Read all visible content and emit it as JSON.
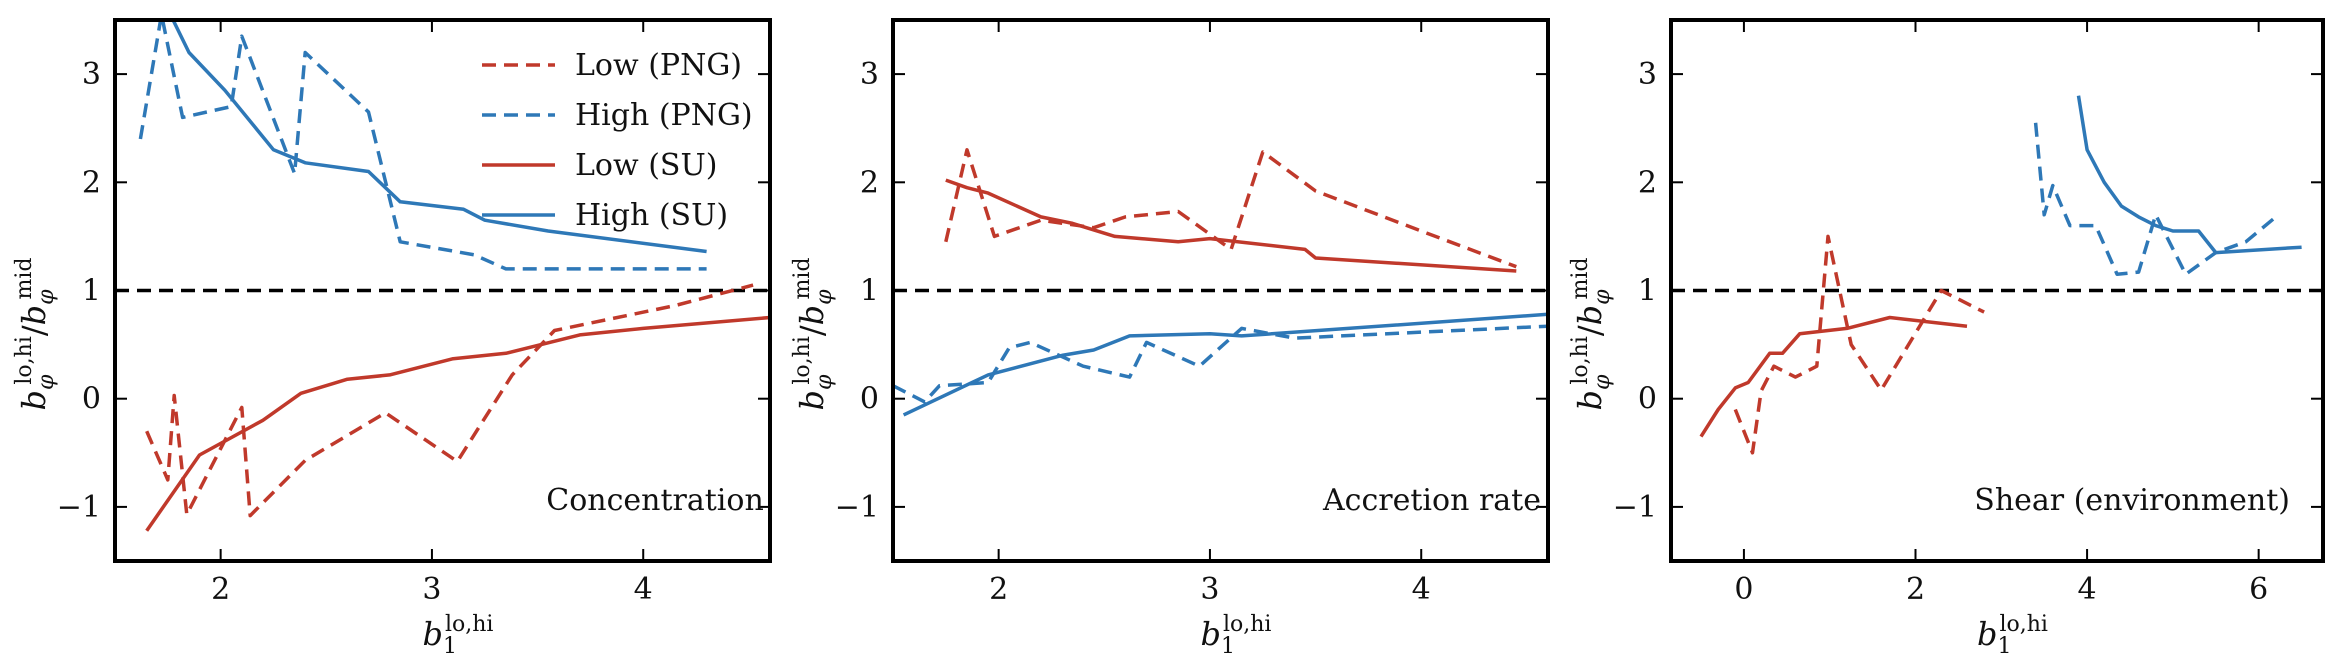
{
  "figure": {
    "legend": [
      {
        "label": "Low (PNG)",
        "color": "#c0392b",
        "dash": true
      },
      {
        "label": "High (PNG)",
        "color": "#2e78b7",
        "dash": true
      },
      {
        "label": "Low (SU)",
        "color": "#c0392b",
        "dash": false
      },
      {
        "label": "High (SU)",
        "color": "#2e78b7",
        "dash": false
      }
    ],
    "colors": {
      "low": "#c0392b",
      "high": "#2e78b7",
      "reference": "#000000"
    }
  },
  "chart_data": [
    {
      "type": "line",
      "annotation": "Concentration",
      "xlabel": "b_1^{lo,hi}",
      "ylabel": "b_φ^{lo,hi} / b_φ^{mid}",
      "xlim": [
        1.5,
        4.6
      ],
      "ylim": [
        -1.5,
        3.5
      ],
      "xticks": [
        2,
        3,
        4
      ],
      "yticks": [
        -1,
        0,
        1,
        2,
        3
      ],
      "reference_line": 1,
      "legend_position": "top-right",
      "series": [
        {
          "name": "Low (PNG)",
          "color": "#c0392b",
          "dashed": true,
          "x": [
            1.65,
            1.75,
            1.78,
            1.84,
            2.1,
            2.14,
            2.4,
            2.78,
            3.12,
            3.38,
            3.58,
            4.15,
            4.52
          ],
          "y": [
            -0.3,
            -0.75,
            0.03,
            -1.07,
            -0.08,
            -1.08,
            -0.57,
            -0.13,
            -0.58,
            0.22,
            0.63,
            0.86,
            1.05
          ]
        },
        {
          "name": "High (PNG)",
          "color": "#2e78b7",
          "dashed": true,
          "x": [
            1.62,
            1.72,
            1.82,
            2.05,
            2.1,
            2.35,
            2.4,
            2.7,
            2.85,
            3.2,
            3.35,
            4.3
          ],
          "y": [
            2.4,
            3.55,
            2.6,
            2.7,
            3.35,
            2.08,
            3.2,
            2.65,
            1.45,
            1.33,
            1.2,
            1.2
          ]
        },
        {
          "name": "Low (SU)",
          "color": "#c0392b",
          "dashed": false,
          "x": [
            1.65,
            1.9,
            2.2,
            2.38,
            2.6,
            2.8,
            3.1,
            3.35,
            3.7,
            4.0,
            4.6
          ],
          "y": [
            -1.22,
            -0.52,
            -0.2,
            0.05,
            0.18,
            0.22,
            0.37,
            0.42,
            0.59,
            0.65,
            0.75
          ]
        },
        {
          "name": "High (SU)",
          "color": "#2e78b7",
          "dashed": false,
          "x": [
            1.75,
            1.85,
            2.02,
            2.25,
            2.4,
            2.7,
            2.85,
            3.15,
            3.25,
            3.55,
            4.3
          ],
          "y": [
            3.6,
            3.2,
            2.85,
            2.3,
            2.18,
            2.1,
            1.82,
            1.75,
            1.65,
            1.55,
            1.36
          ]
        }
      ]
    },
    {
      "type": "line",
      "annotation": "Accretion rate",
      "xlabel": "b_1^{lo,hi}",
      "ylabel": "b_φ^{lo,hi} / b_φ^{mid}",
      "xlim": [
        1.5,
        4.6
      ],
      "ylim": [
        -1.5,
        3.5
      ],
      "xticks": [
        2,
        3,
        4
      ],
      "yticks": [
        -1,
        0,
        1,
        2,
        3
      ],
      "reference_line": 1,
      "series": [
        {
          "name": "Low (PNG)",
          "color": "#c0392b",
          "dashed": true,
          "x": [
            1.75,
            1.85,
            1.98,
            2.2,
            2.45,
            2.6,
            2.85,
            3.1,
            3.25,
            3.5,
            4.0,
            4.45
          ],
          "y": [
            1.45,
            2.3,
            1.5,
            1.65,
            1.58,
            1.68,
            1.73,
            1.38,
            2.28,
            1.92,
            1.55,
            1.22
          ]
        },
        {
          "name": "High (PNG)",
          "color": "#2e78b7",
          "dashed": true,
          "x": [
            1.5,
            1.65,
            1.72,
            1.95,
            2.05,
            2.15,
            2.4,
            2.62,
            2.7,
            2.95,
            3.15,
            3.4,
            4.6
          ],
          "y": [
            0.12,
            -0.03,
            0.12,
            0.15,
            0.47,
            0.52,
            0.3,
            0.2,
            0.52,
            0.3,
            0.65,
            0.56,
            0.67
          ]
        },
        {
          "name": "Low (SU)",
          "color": "#c0392b",
          "dashed": false,
          "x": [
            1.75,
            1.85,
            1.95,
            2.2,
            2.35,
            2.55,
            2.85,
            3.0,
            3.45,
            3.5,
            4.45
          ],
          "y": [
            2.02,
            1.95,
            1.9,
            1.68,
            1.62,
            1.5,
            1.45,
            1.48,
            1.38,
            1.3,
            1.18
          ]
        },
        {
          "name": "High (SU)",
          "color": "#2e78b7",
          "dashed": false,
          "x": [
            1.55,
            1.95,
            2.3,
            2.45,
            2.62,
            3.0,
            3.15,
            4.6
          ],
          "y": [
            -0.15,
            0.22,
            0.4,
            0.45,
            0.58,
            0.6,
            0.58,
            0.78
          ]
        }
      ]
    },
    {
      "type": "line",
      "annotation": "Shear (environment)",
      "xlabel": "b_1^{lo,hi}",
      "ylabel": "b_φ^{lo,hi} / b_φ^{mid}",
      "xlim": [
        -0.85,
        6.75
      ],
      "ylim": [
        -1.5,
        3.5
      ],
      "xticks": [
        0,
        2,
        4,
        6
      ],
      "yticks": [
        -1,
        0,
        1,
        2,
        3
      ],
      "reference_line": 1,
      "series": [
        {
          "name": "Low (PNG)",
          "color": "#c0392b",
          "dashed": true,
          "x": [
            -0.1,
            0.1,
            0.2,
            0.35,
            0.6,
            0.85,
            0.98,
            1.25,
            1.6,
            2.3,
            2.8
          ],
          "y": [
            -0.1,
            -0.5,
            0.07,
            0.3,
            0.2,
            0.3,
            1.5,
            0.5,
            0.08,
            1.0,
            0.8
          ]
        },
        {
          "name": "High (PNG)",
          "color": "#2e78b7",
          "dashed": true,
          "x": [
            3.4,
            3.5,
            3.6,
            3.8,
            4.1,
            4.35,
            4.6,
            4.8,
            5.15,
            5.5,
            5.85,
            6.2
          ],
          "y": [
            2.55,
            1.7,
            1.97,
            1.6,
            1.6,
            1.15,
            1.17,
            1.7,
            1.15,
            1.35,
            1.45,
            1.68
          ]
        },
        {
          "name": "Low (SU)",
          "color": "#c0392b",
          "dashed": false,
          "x": [
            -0.5,
            -0.3,
            -0.1,
            0.05,
            0.3,
            0.45,
            0.65,
            1.2,
            1.7,
            2.6
          ],
          "y": [
            -0.35,
            -0.1,
            0.1,
            0.15,
            0.42,
            0.42,
            0.6,
            0.65,
            0.75,
            0.67
          ]
        },
        {
          "name": "High (SU)",
          "color": "#2e78b7",
          "dashed": false,
          "x": [
            3.9,
            4.0,
            4.2,
            4.4,
            4.6,
            4.8,
            5.0,
            5.3,
            5.5,
            6.5
          ],
          "y": [
            2.8,
            2.3,
            2.0,
            1.78,
            1.68,
            1.6,
            1.55,
            1.55,
            1.35,
            1.4
          ]
        }
      ]
    }
  ]
}
